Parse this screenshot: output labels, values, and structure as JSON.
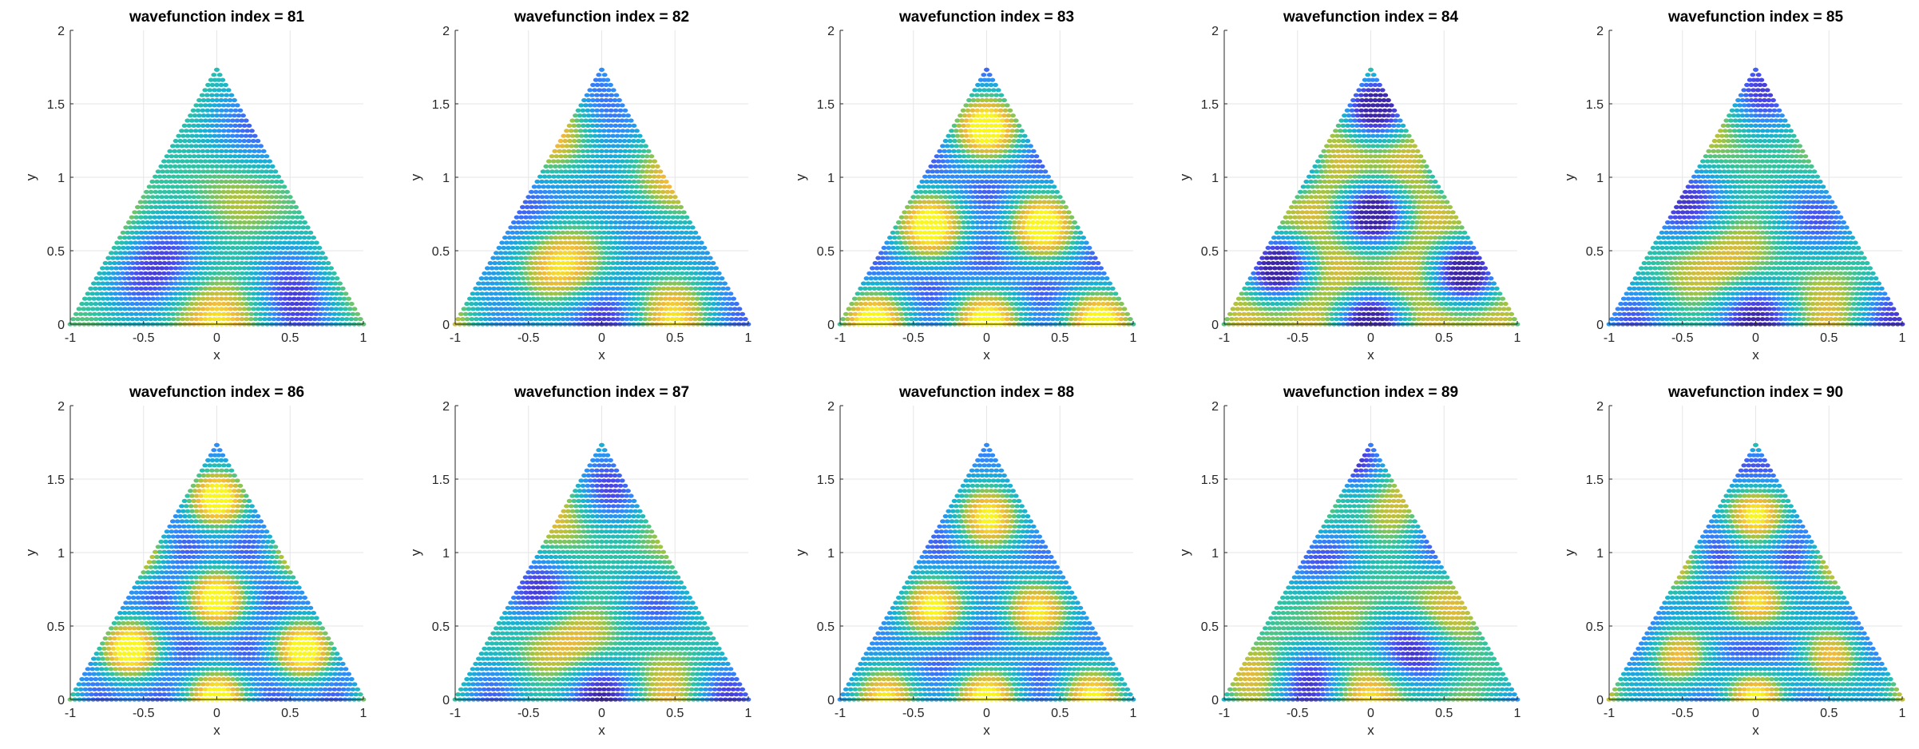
{
  "chart_data": [
    {
      "type": "scatter",
      "title": "wavefunction index = 81",
      "xlabel": "x",
      "ylabel": "y",
      "xlim": [
        -1,
        1
      ],
      "ylim": [
        0,
        2
      ],
      "xticks": [
        "-1",
        "-0.5",
        "0",
        "0.5",
        "1"
      ],
      "yticks": [
        "0",
        "0.5",
        "1",
        "1.5",
        "2"
      ],
      "grid": true,
      "domain": "equilateral triangle, vertices (-1,0), (1,0), (0,1.732)",
      "colormap": "parula"
    },
    {
      "type": "scatter",
      "title": "wavefunction index = 82",
      "xlabel": "x",
      "ylabel": "y",
      "xlim": [
        -1,
        1
      ],
      "ylim": [
        0,
        2
      ],
      "xticks": [
        "-1",
        "-0.5",
        "0",
        "0.5",
        "1"
      ],
      "yticks": [
        "0",
        "0.5",
        "1",
        "1.5",
        "2"
      ],
      "grid": true,
      "domain": "equilateral triangle, vertices (-1,0), (1,0), (0,1.732)",
      "colormap": "parula"
    },
    {
      "type": "scatter",
      "title": "wavefunction index = 83",
      "xlabel": "x",
      "ylabel": "y",
      "xlim": [
        -1,
        1
      ],
      "ylim": [
        0,
        2
      ],
      "xticks": [
        "-1",
        "-0.5",
        "0",
        "0.5",
        "1"
      ],
      "yticks": [
        "0",
        "0.5",
        "1",
        "1.5",
        "2"
      ],
      "grid": true,
      "domain": "equilateral triangle, vertices (-1,0), (1,0), (0,1.732)",
      "colormap": "parula"
    },
    {
      "type": "scatter",
      "title": "wavefunction index = 84",
      "xlabel": "x",
      "ylabel": "y",
      "xlim": [
        -1,
        1
      ],
      "ylim": [
        0,
        2
      ],
      "xticks": [
        "-1",
        "-0.5",
        "0",
        "0.5",
        "1"
      ],
      "yticks": [
        "0",
        "0.5",
        "1",
        "1.5",
        "2"
      ],
      "grid": true,
      "domain": "equilateral triangle, vertices (-1,0), (1,0), (0,1.732)",
      "colormap": "parula"
    },
    {
      "type": "scatter",
      "title": "wavefunction index = 85",
      "xlabel": "x",
      "ylabel": "y",
      "xlim": [
        -1,
        1
      ],
      "ylim": [
        0,
        2
      ],
      "xticks": [
        "-1",
        "-0.5",
        "0",
        "0.5",
        "1"
      ],
      "yticks": [
        "0",
        "0.5",
        "1",
        "1.5",
        "2"
      ],
      "grid": true,
      "domain": "equilateral triangle, vertices (-1,0), (1,0), (0,1.732)",
      "colormap": "parula"
    },
    {
      "type": "scatter",
      "title": "wavefunction index = 86",
      "xlabel": "x",
      "ylabel": "y",
      "xlim": [
        -1,
        1
      ],
      "ylim": [
        0,
        2
      ],
      "xticks": [
        "-1",
        "-0.5",
        "0",
        "0.5",
        "1"
      ],
      "yticks": [
        "0",
        "0.5",
        "1",
        "1.5",
        "2"
      ],
      "grid": true,
      "domain": "equilateral triangle, vertices (-1,0), (1,0), (0,1.732)",
      "colormap": "parula"
    },
    {
      "type": "scatter",
      "title": "wavefunction index = 87",
      "xlabel": "x",
      "ylabel": "y",
      "xlim": [
        -1,
        1
      ],
      "ylim": [
        0,
        2
      ],
      "xticks": [
        "-1",
        "-0.5",
        "0",
        "0.5",
        "1"
      ],
      "yticks": [
        "0",
        "0.5",
        "1",
        "1.5",
        "2"
      ],
      "grid": true,
      "domain": "equilateral triangle, vertices (-1,0), (1,0), (0,1.732)",
      "colormap": "parula"
    },
    {
      "type": "scatter",
      "title": "wavefunction index = 88",
      "xlabel": "x",
      "ylabel": "y",
      "xlim": [
        -1,
        1
      ],
      "ylim": [
        0,
        2
      ],
      "xticks": [
        "-1",
        "-0.5",
        "0",
        "0.5",
        "1"
      ],
      "yticks": [
        "0",
        "0.5",
        "1",
        "1.5",
        "2"
      ],
      "grid": true,
      "domain": "equilateral triangle, vertices (-1,0), (1,0), (0,1.732)",
      "colormap": "parula"
    },
    {
      "type": "scatter",
      "title": "wavefunction index = 89",
      "xlabel": "x",
      "ylabel": "y",
      "xlim": [
        -1,
        1
      ],
      "ylim": [
        0,
        2
      ],
      "xticks": [
        "-1",
        "-0.5",
        "0",
        "0.5",
        "1"
      ],
      "yticks": [
        "0",
        "0.5",
        "1",
        "1.5",
        "2"
      ],
      "grid": true,
      "domain": "equilateral triangle, vertices (-1,0), (1,0), (0,1.732)",
      "colormap": "parula"
    },
    {
      "type": "scatter",
      "title": "wavefunction index = 90",
      "xlabel": "x",
      "ylabel": "y",
      "xlim": [
        -1,
        1
      ],
      "ylim": [
        0,
        2
      ],
      "xticks": [
        "-1",
        "-0.5",
        "0",
        "0.5",
        "1"
      ],
      "yticks": [
        "0",
        "0.5",
        "1",
        "1.5",
        "2"
      ],
      "grid": true,
      "domain": "equilateral triangle, vertices (-1,0), (1,0), (0,1.732)",
      "colormap": "parula"
    }
  ],
  "colors": {
    "axis": "#262626",
    "grid": "#e6e6e6",
    "background": "#ffffff",
    "colormap_stops": [
      "#3e26a8",
      "#4a49ee",
      "#2f8bfb",
      "#16b2d4",
      "#2fc4a1",
      "#a7c43c",
      "#f1b83a",
      "#f9f620"
    ]
  }
}
